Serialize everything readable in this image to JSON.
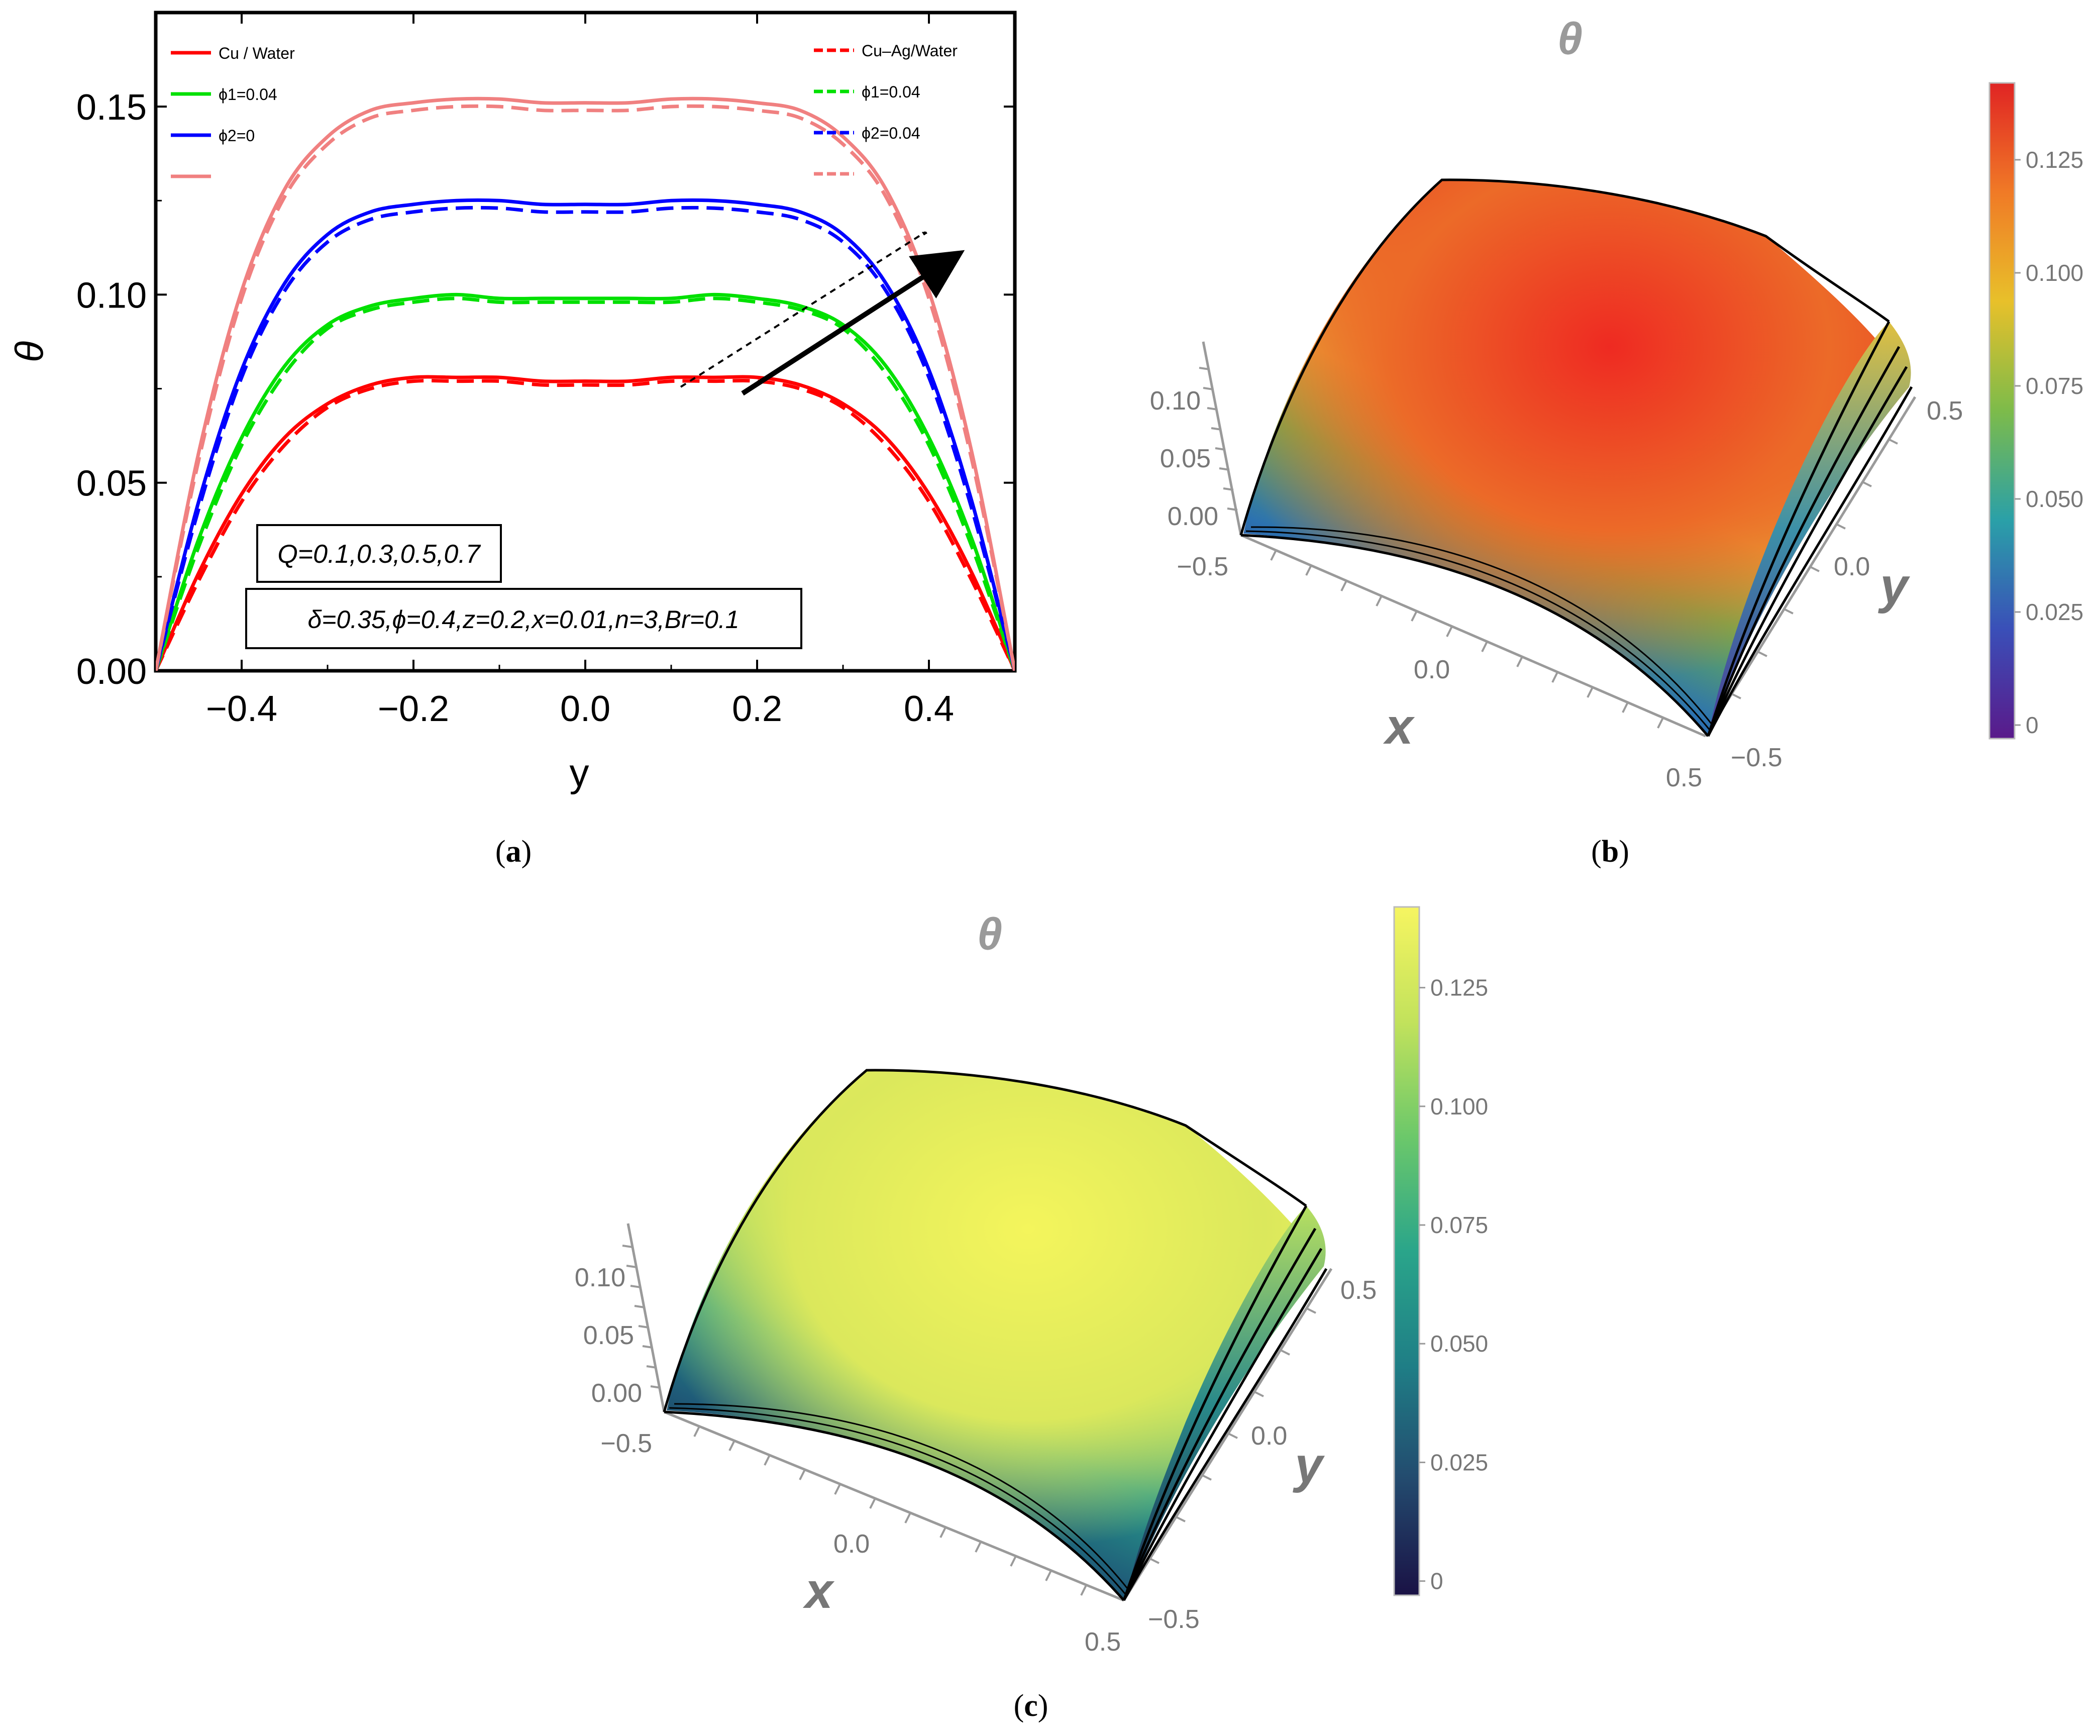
{
  "panels": {
    "a": "a",
    "b": "b",
    "c": "c"
  },
  "chart_data": [
    {
      "type": "line",
      "panel": "a",
      "xlabel": "y",
      "ylabel": "θ",
      "xlim": [
        -0.5,
        0.5
      ],
      "ylim": [
        0,
        0.175
      ],
      "x_ticks": [
        "−0.4",
        "−0.2",
        "0.0",
        "0.2",
        "0.4"
      ],
      "x_tick_values": [
        -0.4,
        -0.2,
        0.0,
        0.2,
        0.4
      ],
      "y_ticks": [
        "0.00",
        "0.05",
        "0.10",
        "0.15"
      ],
      "y_tick_values": [
        0.0,
        0.05,
        0.1,
        0.15
      ],
      "legend_left": [
        {
          "label": "Cu / Water",
          "color": "#ff0000",
          "style": "solid"
        },
        {
          "label": "ϕ1=0.04",
          "color": "#00e000",
          "style": "solid"
        },
        {
          "label": "ϕ2=0",
          "color": "#0000ff",
          "style": "solid"
        },
        {
          "label": "",
          "color": "#f08080",
          "style": "solid"
        }
      ],
      "legend_right": [
        {
          "label": "Cu–Ag/Water",
          "color": "#ff0000",
          "style": "dashed"
        },
        {
          "label": "ϕ1=0.04",
          "color": "#00e000",
          "style": "dashed"
        },
        {
          "label": "ϕ2=0.04",
          "color": "#0000ff",
          "style": "dashed"
        },
        {
          "label": "",
          "color": "#f08080",
          "style": "dashed"
        }
      ],
      "annotations": [
        "Q=0.1,0.3,0.5,0.7",
        "δ=0.35,ϕ=0.4,z=0.2,x=0.01,n=3,Br=0.1"
      ],
      "x": [
        -0.5,
        -0.45,
        -0.4,
        -0.35,
        -0.3,
        -0.25,
        -0.2,
        -0.15,
        -0.1,
        -0.05,
        0.0,
        0.05,
        0.1,
        0.15,
        0.2,
        0.25,
        0.3,
        0.35,
        0.4,
        0.45,
        0.5
      ],
      "series": [
        {
          "name": "Cu / Water, Q=0.1",
          "color": "#ff0000",
          "style": "solid",
          "values": [
            0.0,
            0.026,
            0.047,
            0.062,
            0.071,
            0.076,
            0.078,
            0.078,
            0.078,
            0.077,
            0.077,
            0.077,
            0.078,
            0.078,
            0.078,
            0.076,
            0.071,
            0.062,
            0.047,
            0.026,
            0.0
          ]
        },
        {
          "name": "Cu–Ag/Water, Q=0.1",
          "color": "#ff0000",
          "style": "dashed",
          "values": [
            0.0,
            0.024,
            0.045,
            0.06,
            0.07,
            0.075,
            0.077,
            0.077,
            0.077,
            0.076,
            0.076,
            0.076,
            0.077,
            0.077,
            0.077,
            0.075,
            0.07,
            0.06,
            0.045,
            0.024,
            0.0
          ]
        },
        {
          "name": "Cu / Water, Q=0.3",
          "color": "#00e000",
          "style": "solid",
          "values": [
            0.0,
            0.035,
            0.062,
            0.081,
            0.092,
            0.097,
            0.099,
            0.1,
            0.099,
            0.099,
            0.099,
            0.099,
            0.099,
            0.1,
            0.099,
            0.097,
            0.092,
            0.081,
            0.062,
            0.035,
            0.0
          ]
        },
        {
          "name": "Cu–Ag/Water, Q=0.3",
          "color": "#00e000",
          "style": "dashed",
          "values": [
            0.0,
            0.033,
            0.06,
            0.079,
            0.091,
            0.096,
            0.098,
            0.099,
            0.098,
            0.098,
            0.098,
            0.098,
            0.098,
            0.099,
            0.098,
            0.096,
            0.091,
            0.079,
            0.06,
            0.033,
            0.0
          ]
        },
        {
          "name": "Cu / Water, Q=0.5",
          "color": "#0000ff",
          "style": "solid",
          "values": [
            0.0,
            0.045,
            0.08,
            0.103,
            0.116,
            0.122,
            0.124,
            0.125,
            0.125,
            0.124,
            0.124,
            0.124,
            0.125,
            0.125,
            0.124,
            0.122,
            0.116,
            0.103,
            0.08,
            0.045,
            0.0
          ]
        },
        {
          "name": "Cu–Ag/Water, Q=0.5",
          "color": "#0000ff",
          "style": "dashed",
          "values": [
            0.0,
            0.043,
            0.078,
            0.101,
            0.114,
            0.12,
            0.122,
            0.123,
            0.123,
            0.122,
            0.122,
            0.122,
            0.123,
            0.123,
            0.122,
            0.12,
            0.114,
            0.101,
            0.078,
            0.043,
            0.0
          ]
        },
        {
          "name": "Cu / Water, Q=0.7",
          "color": "#f08080",
          "style": "solid",
          "values": [
            0.0,
            0.058,
            0.101,
            0.128,
            0.142,
            0.149,
            0.151,
            0.152,
            0.152,
            0.151,
            0.151,
            0.151,
            0.152,
            0.152,
            0.151,
            0.149,
            0.142,
            0.128,
            0.101,
            0.058,
            0.0
          ]
        },
        {
          "name": "Cu–Ag/Water, Q=0.7",
          "color": "#f08080",
          "style": "dashed",
          "values": [
            0.0,
            0.056,
            0.099,
            0.126,
            0.14,
            0.147,
            0.149,
            0.15,
            0.15,
            0.149,
            0.149,
            0.149,
            0.15,
            0.15,
            0.149,
            0.147,
            0.14,
            0.126,
            0.099,
            0.056,
            0.0
          ]
        }
      ]
    },
    {
      "type": "surface3d",
      "panel": "b",
      "title": "θ",
      "xlabel": "x",
      "ylabel": "y",
      "x_ticks": [
        "−0.5",
        "0.0",
        "0.5"
      ],
      "y_ticks": [
        "−0.5",
        "0.0",
        "0.5"
      ],
      "z_ticks": [
        "0.00",
        "0.05",
        "0.10"
      ],
      "colorbar_ticks": [
        "0",
        "0.025",
        "0.050",
        "0.075",
        "0.100",
        "0.125"
      ],
      "colorbar_values": [
        0,
        0.025,
        0.05,
        0.075,
        0.1,
        0.125
      ],
      "colorbar_range": [
        -0.003,
        0.142
      ],
      "colormap": [
        "#5a1a8a",
        "#3a4fb8",
        "#2aa0a8",
        "#7dbb4a",
        "#e8c02a",
        "#f07a26",
        "#e02424"
      ]
    },
    {
      "type": "surface3d",
      "panel": "c",
      "title": "θ",
      "xlabel": "x",
      "ylabel": "y",
      "x_ticks": [
        "−0.5",
        "0.0",
        "0.5"
      ],
      "y_ticks": [
        "−0.5",
        "0.0",
        "0.5"
      ],
      "z_ticks": [
        "0.00",
        "0.05",
        "0.10"
      ],
      "colorbar_ticks": [
        "0",
        "0.025",
        "0.050",
        "0.075",
        "0.100",
        "0.125"
      ],
      "colorbar_values": [
        0,
        0.025,
        0.05,
        0.075,
        0.1,
        0.125
      ],
      "colorbar_range": [
        -0.003,
        0.142
      ],
      "colormap": [
        "#1a1245",
        "#234a6e",
        "#1f7e86",
        "#2aa58a",
        "#6cc86a",
        "#c2e25c",
        "#f6f561"
      ]
    }
  ]
}
